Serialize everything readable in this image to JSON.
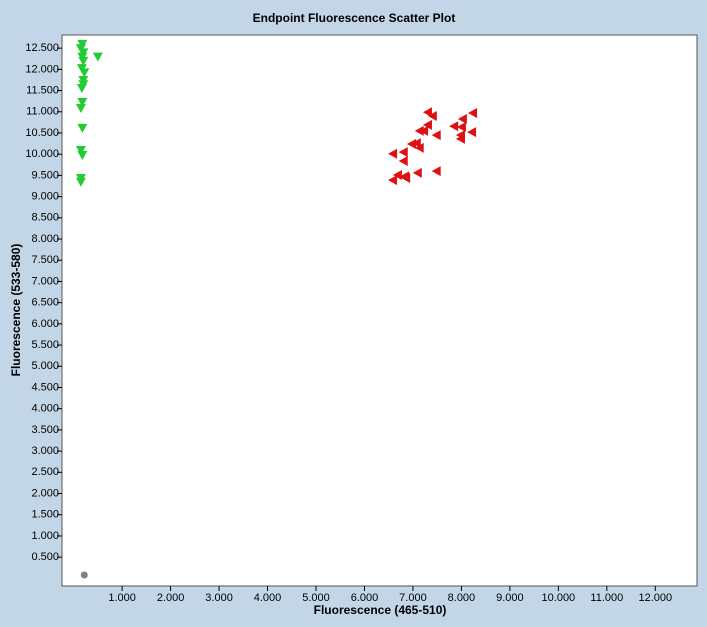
{
  "chart_data": {
    "type": "scatter",
    "title": "Endpoint Fluorescence Scatter Plot",
    "x_label": "Fluorescence (465-510)",
    "y_label": "Fluorescence (533-580)",
    "xlim": [
      -0.24,
      12.86
    ],
    "ylim": [
      -0.18,
      12.81
    ],
    "xticks": [
      {
        "value": 1,
        "label": "1.000"
      },
      {
        "value": 2,
        "label": "2.000"
      },
      {
        "value": 3,
        "label": "3.000"
      },
      {
        "value": 4,
        "label": "4.000"
      },
      {
        "value": 5,
        "label": "5.000"
      },
      {
        "value": 6,
        "label": "6.000"
      },
      {
        "value": 7,
        "label": "7.000"
      },
      {
        "value": 8,
        "label": "8.000"
      },
      {
        "value": 9,
        "label": "9.000"
      },
      {
        "value": 10,
        "label": "10.000"
      },
      {
        "value": 11,
        "label": "11.000"
      },
      {
        "value": 12,
        "label": "12.000"
      }
    ],
    "yticks": [
      {
        "value": 0.5,
        "label": "0.500"
      },
      {
        "value": 1,
        "label": "1.000"
      },
      {
        "value": 1.5,
        "label": "1.500"
      },
      {
        "value": 2,
        "label": "2.000"
      },
      {
        "value": 2.5,
        "label": "2.500"
      },
      {
        "value": 3,
        "label": "3.000"
      },
      {
        "value": 3.5,
        "label": "3.500"
      },
      {
        "value": 4,
        "label": "4.000"
      },
      {
        "value": 4.5,
        "label": "4.500"
      },
      {
        "value": 5,
        "label": "5.000"
      },
      {
        "value": 5.5,
        "label": "5.500"
      },
      {
        "value": 6,
        "label": "6.000"
      },
      {
        "value": 6.5,
        "label": "6.500"
      },
      {
        "value": 7,
        "label": "7.000"
      },
      {
        "value": 7.5,
        "label": "7.500"
      },
      {
        "value": 8,
        "label": "8.000"
      },
      {
        "value": 8.5,
        "label": "8.500"
      },
      {
        "value": 9,
        "label": "9.000"
      },
      {
        "value": 9.5,
        "label": "9.500"
      },
      {
        "value": 10,
        "label": "10.000"
      },
      {
        "value": 10.5,
        "label": "10.500"
      },
      {
        "value": 11,
        "label": "11.000"
      },
      {
        "value": 11.5,
        "label": "11.500"
      },
      {
        "value": 12,
        "label": "12.000"
      },
      {
        "value": 12.5,
        "label": "12.500"
      }
    ],
    "series": [
      {
        "color": "#22cc33",
        "marker": "triangle-down",
        "x": [
          0.18,
          0.15,
          0.2,
          0.18,
          0.2,
          0.17,
          0.22,
          0.2,
          0.2,
          0.17,
          0.18,
          0.15,
          0.18,
          0.15,
          0.18,
          0.15,
          0.15,
          0.5
        ],
        "y": [
          12.6,
          12.5,
          12.4,
          12.3,
          12.2,
          12.03,
          11.93,
          11.75,
          11.65,
          11.56,
          11.23,
          11.09,
          10.62,
          10.1,
          9.98,
          9.44,
          9.35,
          12.3
        ]
      },
      {
        "color": "#dd1111",
        "marker": "triangle-left",
        "x": [
          7.31,
          7.41,
          8.24,
          8.03,
          7.31,
          7.85,
          7.23,
          7.14,
          8.01,
          8.22,
          7.49,
          7.99,
          7.99,
          7.08,
          6.98,
          7.14,
          6.81,
          6.59,
          6.81,
          7.49,
          7.1,
          6.69,
          6.84,
          6.59,
          6.86
        ],
        "y": [
          10.99,
          10.9,
          10.97,
          10.83,
          10.69,
          10.66,
          10.55,
          10.55,
          10.64,
          10.52,
          10.45,
          10.45,
          10.36,
          10.26,
          10.24,
          10.15,
          10.05,
          10.01,
          9.84,
          9.6,
          9.56,
          9.51,
          9.48,
          9.39,
          9.44
        ]
      },
      {
        "color": "#808080",
        "marker": "circle",
        "x": [
          0.22
        ],
        "y": [
          0.08
        ]
      }
    ]
  }
}
